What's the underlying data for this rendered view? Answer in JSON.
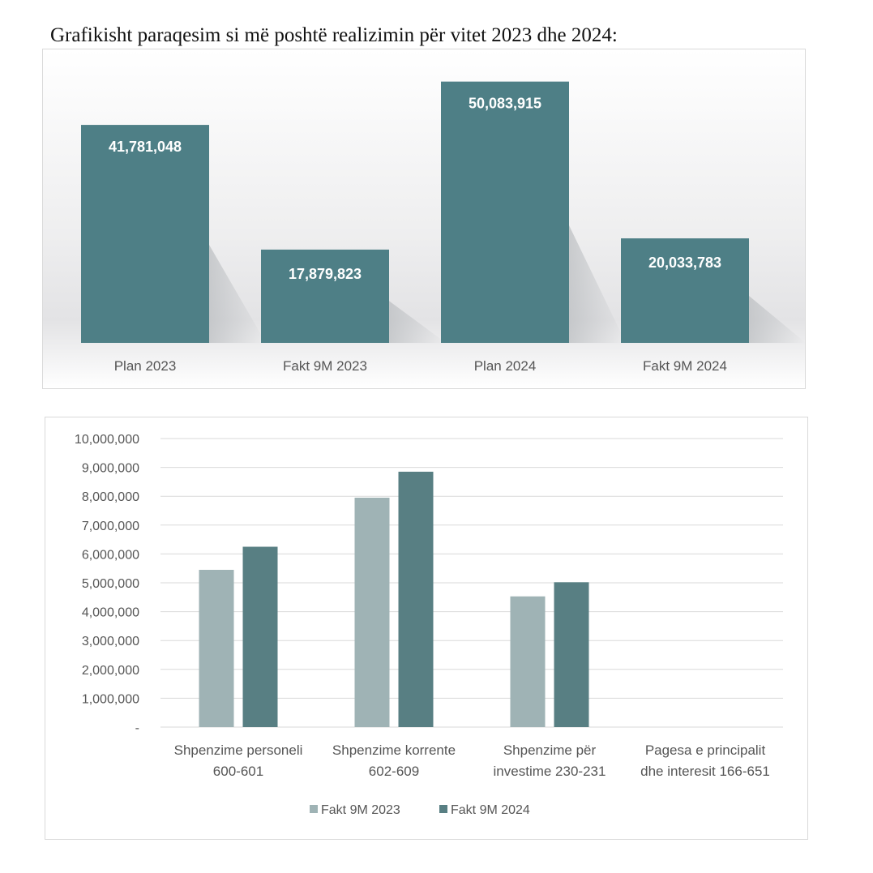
{
  "heading": "Grafikisht paraqesim si më poshtë realizimin për vitet 2023 dhe 2024:",
  "colors": {
    "bar_top": "#4e7f86",
    "series_2023": "#9fb3b5",
    "series_2024": "#587f83",
    "grid": "#d9d9d9",
    "text": "#555555"
  },
  "chart_data": [
    {
      "type": "bar",
      "categories": [
        "Plan 2023",
        "Fakt 9M 2023",
        "Plan 2024",
        "Fakt 9M 2024"
      ],
      "values": [
        41781048,
        17879823,
        50083915,
        20033783
      ],
      "value_labels": [
        "41,781,048",
        "17,879,823",
        "50,083,915",
        "20,033,783"
      ],
      "ylim": [
        0,
        55000000
      ],
      "grid": false,
      "legend": "none"
    },
    {
      "type": "bar",
      "categories": [
        [
          "Shpenzime personeli",
          "600-601"
        ],
        [
          "Shpenzime korrente",
          "602-609"
        ],
        [
          "Shpenzime për",
          "investime 230-231"
        ],
        [
          "Pagesa e principalit",
          "dhe interesit 166-651"
        ]
      ],
      "series": [
        {
          "name": "Fakt 9M 2023",
          "values": [
            5450000,
            7950000,
            4530000,
            0
          ]
        },
        {
          "name": "Fakt 9M 2024",
          "values": [
            6250000,
            8850000,
            5020000,
            0
          ]
        }
      ],
      "ylim": [
        0,
        10000000
      ],
      "yticks": [
        {
          "value": 0,
          "label": "-"
        },
        {
          "value": 1000000,
          "label": "1,000,000"
        },
        {
          "value": 2000000,
          "label": "2,000,000"
        },
        {
          "value": 3000000,
          "label": "3,000,000"
        },
        {
          "value": 4000000,
          "label": "4,000,000"
        },
        {
          "value": 5000000,
          "label": "5,000,000"
        },
        {
          "value": 6000000,
          "label": "6,000,000"
        },
        {
          "value": 7000000,
          "label": "7,000,000"
        },
        {
          "value": 8000000,
          "label": "8,000,000"
        },
        {
          "value": 9000000,
          "label": "9,000,000"
        },
        {
          "value": 10000000,
          "label": "10,000,000"
        }
      ],
      "grid": true,
      "legend": "bottom"
    }
  ]
}
